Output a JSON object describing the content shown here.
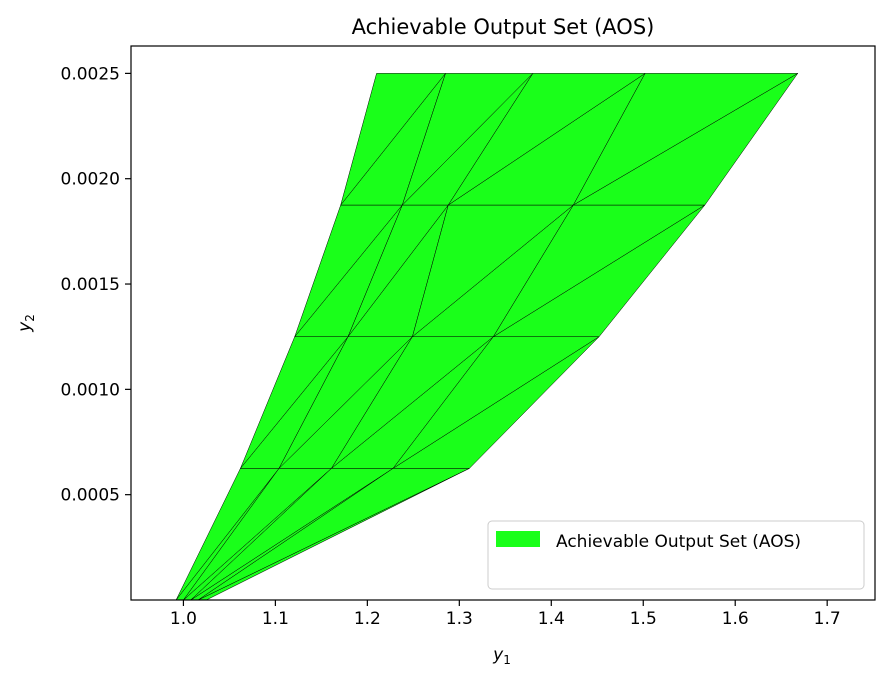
{
  "chart_data": {
    "type": "area",
    "title": "Achievable Output Set (AOS)",
    "xlabel": "y",
    "xlabel_sub": "1",
    "ylabel": "y",
    "ylabel_sub": "2",
    "xlim": [
      0.943,
      1.752
    ],
    "ylim": [
      0.0,
      0.00263
    ],
    "xticks": [
      1.0,
      1.1,
      1.2,
      1.3,
      1.4,
      1.5,
      1.6,
      1.7
    ],
    "xtick_labels": [
      "1.0",
      "1.1",
      "1.2",
      "1.3",
      "1.4",
      "1.5",
      "1.6",
      "1.7"
    ],
    "yticks": [
      0.0005,
      0.001,
      0.0015,
      0.002,
      0.0025
    ],
    "ytick_labels": [
      "0.0005",
      "0.0010",
      "0.0015",
      "0.0020",
      "0.0025"
    ],
    "legend": {
      "label": "Achievable Output Set (AOS)",
      "placement": "lower-right"
    },
    "colors": {
      "fill": "#1aff1a",
      "edge": "#000000",
      "axes": "#000000",
      "background": "#ffffff"
    },
    "grid": false,
    "vertex_rows": [
      {
        "y": 0.0,
        "x": [
          0.992,
          1.0,
          1.008,
          1.016,
          1.025
        ]
      },
      {
        "y": 0.000625,
        "x": [
          1.062,
          1.104,
          1.161,
          1.228,
          1.311
        ]
      },
      {
        "y": 0.00125,
        "x": [
          1.121,
          1.179,
          1.249,
          1.337,
          1.452
        ]
      },
      {
        "y": 0.001875,
        "x": [
          1.171,
          1.238,
          1.288,
          1.424,
          1.567
        ]
      },
      {
        "y": 0.0025,
        "x": [
          1.21,
          1.285,
          1.38,
          1.502,
          1.668
        ]
      }
    ],
    "triangulation": [
      [
        [
          0,
          0
        ],
        [
          1,
          0
        ],
        [
          1,
          1
        ]
      ],
      [
        [
          0,
          0
        ],
        [
          1,
          1
        ],
        [
          0,
          1
        ]
      ],
      [
        [
          0,
          1
        ],
        [
          1,
          1
        ],
        [
          1,
          2
        ]
      ],
      [
        [
          0,
          1
        ],
        [
          1,
          2
        ],
        [
          0,
          2
        ]
      ],
      [
        [
          0,
          2
        ],
        [
          1,
          2
        ],
        [
          1,
          3
        ]
      ],
      [
        [
          0,
          2
        ],
        [
          1,
          3
        ],
        [
          0,
          3
        ]
      ],
      [
        [
          0,
          3
        ],
        [
          1,
          3
        ],
        [
          1,
          4
        ]
      ],
      [
        [
          0,
          3
        ],
        [
          1,
          4
        ],
        [
          0,
          4
        ]
      ],
      [
        [
          1,
          0
        ],
        [
          2,
          0
        ],
        [
          2,
          1
        ]
      ],
      [
        [
          1,
          0
        ],
        [
          2,
          1
        ],
        [
          1,
          1
        ]
      ],
      [
        [
          1,
          1
        ],
        [
          2,
          1
        ],
        [
          2,
          2
        ]
      ],
      [
        [
          1,
          1
        ],
        [
          2,
          2
        ],
        [
          1,
          2
        ]
      ],
      [
        [
          1,
          2
        ],
        [
          2,
          2
        ],
        [
          2,
          3
        ]
      ],
      [
        [
          1,
          2
        ],
        [
          2,
          3
        ],
        [
          1,
          3
        ]
      ],
      [
        [
          1,
          3
        ],
        [
          2,
          3
        ],
        [
          2,
          4
        ]
      ],
      [
        [
          1,
          3
        ],
        [
          2,
          4
        ],
        [
          1,
          4
        ]
      ],
      [
        [
          2,
          0
        ],
        [
          3,
          0
        ],
        [
          3,
          1
        ]
      ],
      [
        [
          2,
          0
        ],
        [
          3,
          1
        ],
        [
          2,
          1
        ]
      ],
      [
        [
          2,
          1
        ],
        [
          3,
          1
        ],
        [
          3,
          2
        ]
      ],
      [
        [
          2,
          1
        ],
        [
          3,
          2
        ],
        [
          2,
          2
        ]
      ],
      [
        [
          2,
          2
        ],
        [
          3,
          2
        ],
        [
          3,
          3
        ]
      ],
      [
        [
          2,
          2
        ],
        [
          3,
          3
        ],
        [
          2,
          3
        ]
      ],
      [
        [
          2,
          3
        ],
        [
          3,
          3
        ],
        [
          3,
          4
        ]
      ],
      [
        [
          2,
          3
        ],
        [
          3,
          4
        ],
        [
          2,
          4
        ]
      ],
      [
        [
          3,
          0
        ],
        [
          4,
          0
        ],
        [
          4,
          1
        ]
      ],
      [
        [
          3,
          0
        ],
        [
          4,
          1
        ],
        [
          3,
          1
        ]
      ],
      [
        [
          3,
          1
        ],
        [
          4,
          1
        ],
        [
          4,
          2
        ]
      ],
      [
        [
          3,
          1
        ],
        [
          4,
          2
        ],
        [
          3,
          2
        ]
      ],
      [
        [
          3,
          2
        ],
        [
          4,
          2
        ],
        [
          4,
          3
        ]
      ],
      [
        [
          3,
          2
        ],
        [
          4,
          3
        ],
        [
          3,
          3
        ]
      ],
      [
        [
          3,
          3
        ],
        [
          4,
          3
        ],
        [
          4,
          4
        ]
      ],
      [
        [
          3,
          3
        ],
        [
          4,
          4
        ],
        [
          3,
          4
        ]
      ]
    ]
  }
}
